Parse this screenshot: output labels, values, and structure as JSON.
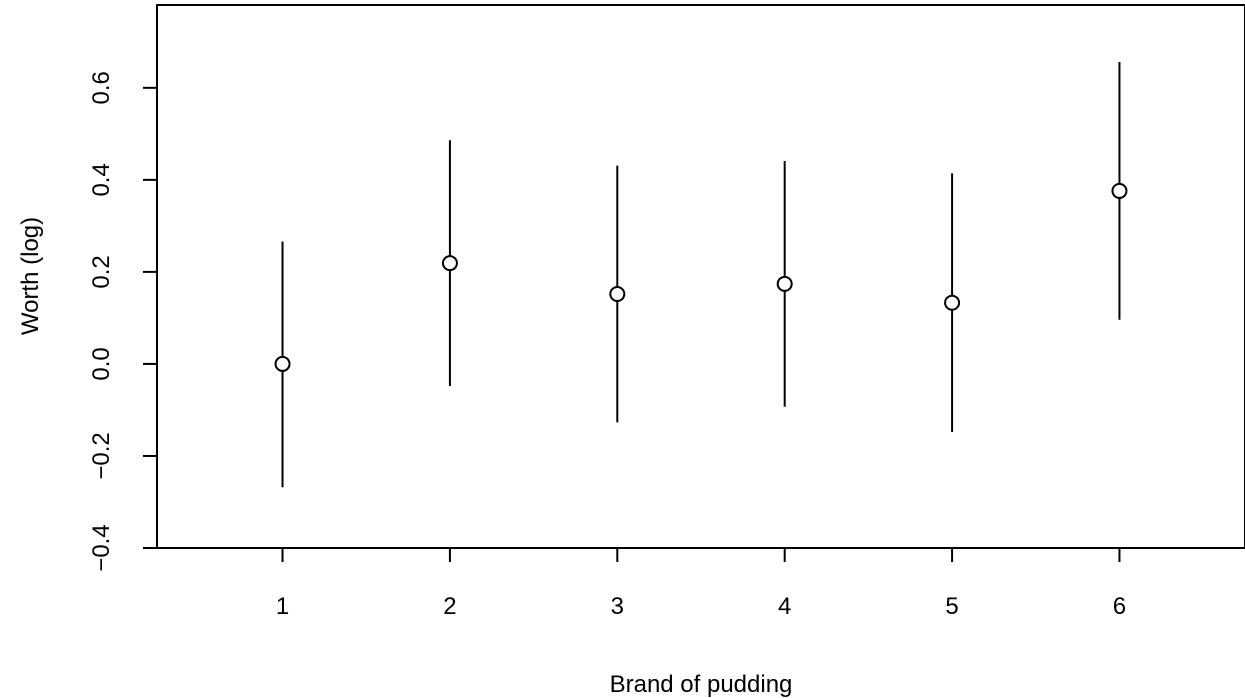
{
  "chart_data": {
    "type": "scatter",
    "title": "",
    "xlabel": "Brand of pudding",
    "ylabel": "Worth (log)",
    "xlim": [
      0.25,
      6.75
    ],
    "ylim": [
      -0.4,
      0.78
    ],
    "x_ticks": [
      1,
      2,
      3,
      4,
      5,
      6
    ],
    "x_tick_labels": [
      "1",
      "2",
      "3",
      "4",
      "5",
      "6"
    ],
    "y_ticks": [
      -0.4,
      -0.2,
      0.0,
      0.2,
      0.4,
      0.6
    ],
    "y_tick_labels": [
      "−0.4",
      "−0.2",
      "0.0",
      "0.2",
      "0.4",
      "0.6"
    ],
    "grid": false,
    "points": [
      {
        "x": 1,
        "y": 0.0,
        "lower": -0.268,
        "upper": 0.266
      },
      {
        "x": 2,
        "y": 0.219,
        "lower": -0.048,
        "upper": 0.486
      },
      {
        "x": 3,
        "y": 0.152,
        "lower": -0.127,
        "upper": 0.431
      },
      {
        "x": 4,
        "y": 0.174,
        "lower": -0.093,
        "upper": 0.441
      },
      {
        "x": 5,
        "y": 0.133,
        "lower": -0.148,
        "upper": 0.414
      },
      {
        "x": 6,
        "y": 0.376,
        "lower": 0.096,
        "upper": 0.656
      }
    ],
    "colors": {
      "marks": "#000000",
      "background": "#ffffff"
    }
  }
}
